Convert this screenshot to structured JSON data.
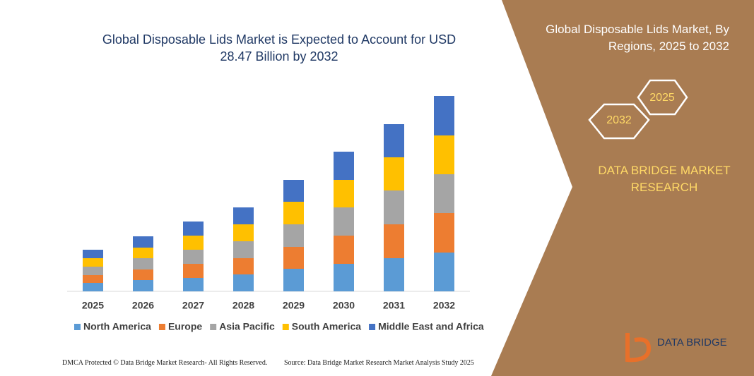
{
  "chart_data": {
    "type": "bar",
    "stacked": true,
    "title": "Global Disposable Lids Market is Expected to Account for USD 28.47 Billion by 2032",
    "categories": [
      "2025",
      "2026",
      "2027",
      "2028",
      "2029",
      "2030",
      "2031",
      "2032"
    ],
    "series": [
      {
        "name": "North America",
        "color": "#5b9bd5",
        "values": [
          12,
          16,
          19,
          24,
          32,
          39,
          47,
          55
        ]
      },
      {
        "name": "Europe",
        "color": "#ed7d31",
        "values": [
          11,
          15,
          20,
          23,
          31,
          40,
          48,
          56
        ]
      },
      {
        "name": "Asia Pacific",
        "color": "#a5a5a5",
        "values": [
          12,
          16,
          20,
          24,
          32,
          40,
          48,
          55
        ]
      },
      {
        "name": "South America",
        "color": "#ffc000",
        "values": [
          12,
          15,
          20,
          24,
          32,
          39,
          47,
          55
        ]
      },
      {
        "name": "Middle East and Africa",
        "color": "#4472c4",
        "values": [
          12,
          16,
          20,
          24,
          31,
          40,
          47,
          56
        ]
      }
    ],
    "ylim": [
      0,
      280
    ],
    "legend": "bottom"
  },
  "panel": {
    "title": "Global Disposable Lids Market, By Regions, 2025 to 2032",
    "hexagons": [
      "2032",
      "2025"
    ],
    "brand": "DATA BRIDGE MARKET RESEARCH",
    "logo": "DATA BRIDGE"
  },
  "footer": {
    "left": "DMCA Protected © Data Bridge Market Research- All Rights Reserved.",
    "right": "Source: Data Bridge Market Research Market Analysis Study 2025"
  }
}
